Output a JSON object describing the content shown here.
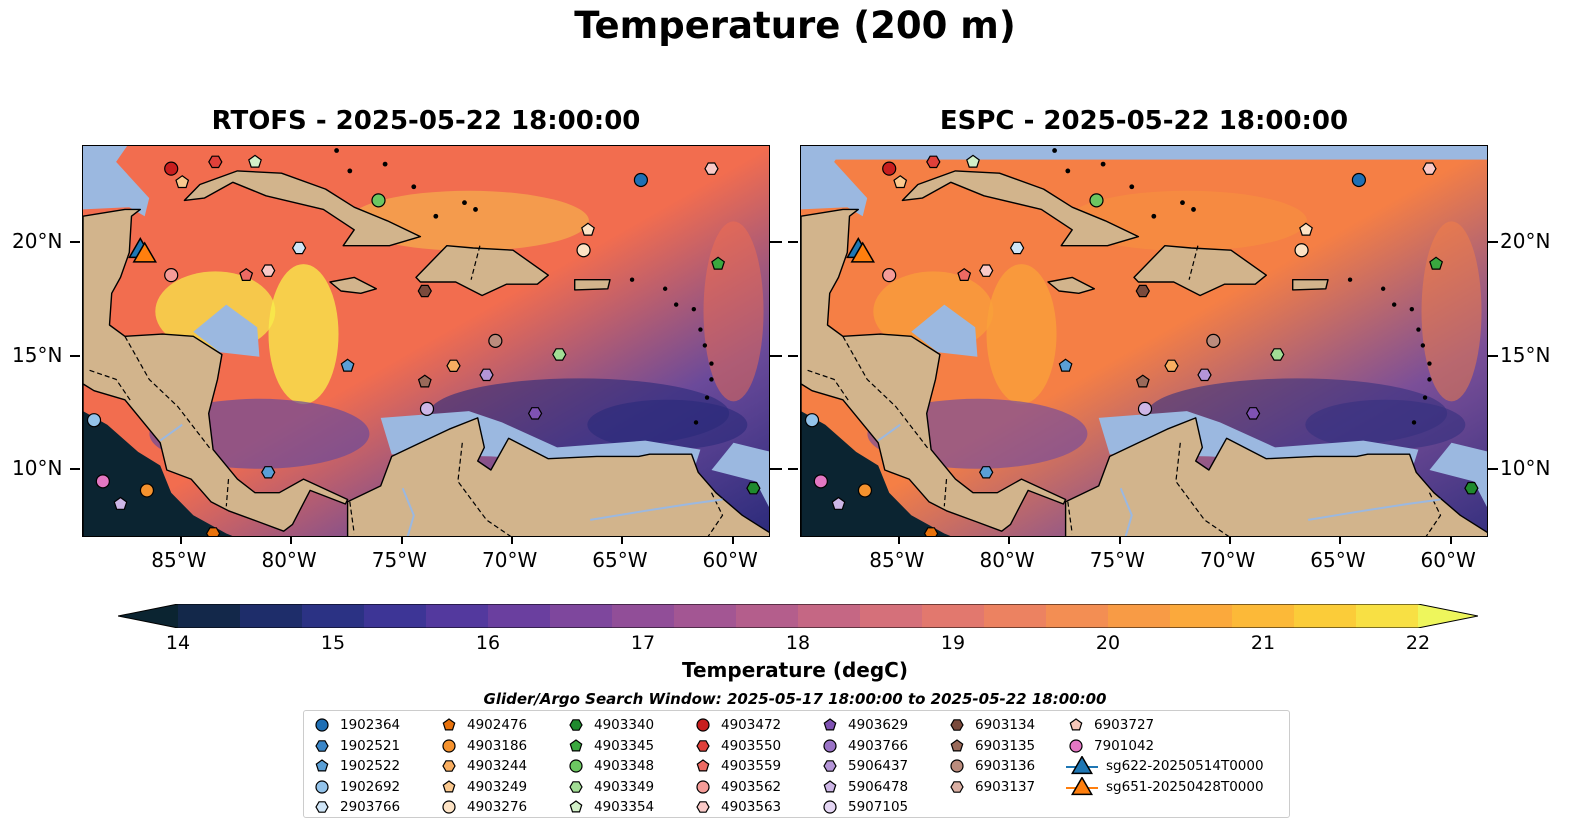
{
  "title": "Temperature (200 m)",
  "panels": [
    {
      "id": "rtofs",
      "title": "RTOFS - 2025-05-22 18:00:00",
      "colors": {
        "warm": "#f26d4f",
        "hot": "#f8f04a",
        "cool": "#6b4a9a",
        "cold": "#2a2a7a"
      }
    },
    {
      "id": "espc",
      "title": "ESPC - 2025-05-22 18:00:00",
      "colors": {
        "warm": "#f57f45",
        "hot": "#f9a13a",
        "cool": "#7b4f98",
        "cold": "#35307f"
      }
    }
  ],
  "axes": {
    "lon_labels": [
      "85°W",
      "80°W",
      "75°W",
      "70°W",
      "65°W",
      "60°W"
    ],
    "lat_labels": [
      "20°N",
      "15°N",
      "10°N"
    ]
  },
  "colorbar": {
    "ticks": [
      "14",
      "15",
      "16",
      "17",
      "18",
      "19",
      "20",
      "21",
      "22"
    ],
    "label": "Temperature (degC)",
    "colors": [
      "#0b2431",
      "#13284a",
      "#1e2d6a",
      "#2b3284",
      "#3d3596",
      "#53399e",
      "#6a3f9f",
      "#7e479d",
      "#914e98",
      "#a35693",
      "#b45e8c",
      "#c56784",
      "#d5707a",
      "#e2786e",
      "#ec8261",
      "#f38e53",
      "#f89b45",
      "#fba93c",
      "#fcb938",
      "#fbcc39",
      "#f8e044",
      "#eef65c"
    ],
    "range": [
      14,
      22
    ]
  },
  "legend": {
    "title": "Glider/Argo Search Window: 2025-05-17 18:00:00 to 2025-05-22 18:00:00",
    "columns": [
      [
        {
          "label": "1902364",
          "marker": "circle",
          "color": "#1f6fb4"
        },
        {
          "label": "1902521",
          "marker": "hexagon",
          "color": "#3a86c8"
        },
        {
          "label": "1902522",
          "marker": "pentagon",
          "color": "#5a9fd6"
        },
        {
          "label": "1902692",
          "marker": "circle",
          "color": "#93c3ea"
        },
        {
          "label": "2903766",
          "marker": "hexagon",
          "color": "#cfe5f7"
        }
      ],
      [
        {
          "label": "4902476",
          "marker": "pentagon",
          "color": "#e8720c"
        },
        {
          "label": "4903186",
          "marker": "circle",
          "color": "#f5922e"
        },
        {
          "label": "4903244",
          "marker": "hexagon",
          "color": "#f8ae61"
        },
        {
          "label": "4903249",
          "marker": "pentagon",
          "color": "#fbc98f"
        },
        {
          "label": "4903276",
          "marker": "circle",
          "color": "#fde3c5"
        }
      ],
      [
        {
          "label": "4903340",
          "marker": "hexagon",
          "color": "#1f8a2e"
        },
        {
          "label": "4903345",
          "marker": "pentagon",
          "color": "#3aa83f"
        },
        {
          "label": "4903348",
          "marker": "circle",
          "color": "#6cc661"
        },
        {
          "label": "4903349",
          "marker": "hexagon",
          "color": "#a2dd95"
        },
        {
          "label": "4903354",
          "marker": "pentagon",
          "color": "#d2f0c8"
        }
      ],
      [
        {
          "label": "4903472",
          "marker": "circle",
          "color": "#c81e1e"
        },
        {
          "label": "4903550",
          "marker": "hexagon",
          "color": "#e0403a"
        },
        {
          "label": "4903559",
          "marker": "pentagon",
          "color": "#ed6a63"
        },
        {
          "label": "4903562",
          "marker": "circle",
          "color": "#f59c98"
        },
        {
          "label": "4903563",
          "marker": "hexagon",
          "color": "#facac8"
        }
      ],
      [
        {
          "label": "4903629",
          "marker": "pentagon",
          "color": "#7f52b3"
        },
        {
          "label": "4903766",
          "marker": "circle",
          "color": "#9a73c6"
        },
        {
          "label": "5906437",
          "marker": "hexagon",
          "color": "#b495d7"
        },
        {
          "label": "5906478",
          "marker": "pentagon",
          "color": "#cdb6e6"
        },
        {
          "label": "5907105",
          "marker": "circle",
          "color": "#e4d6f3"
        }
      ],
      [
        {
          "label": "6903134",
          "marker": "hexagon",
          "color": "#7a4a3c"
        },
        {
          "label": "6903135",
          "marker": "pentagon",
          "color": "#9a6a5a"
        },
        {
          "label": "6903136",
          "marker": "circle",
          "color": "#bb8c7d"
        },
        {
          "label": "6903137",
          "marker": "hexagon",
          "color": "#dbb0a4"
        }
      ],
      [
        {
          "label": "6903727",
          "marker": "pentagon",
          "color": "#f7c7ba"
        },
        {
          "label": "7901042",
          "marker": "circle",
          "color": "#e377c2"
        },
        {
          "label": "sg622-20250514T0000",
          "marker": "triangle",
          "color": "#1f77b4"
        },
        {
          "label": "sg651-20250428T0000",
          "marker": "triangle",
          "color": "#ff7f0e"
        }
      ]
    ]
  },
  "markers": [
    {
      "lon": -85.5,
      "lat": 23.3,
      "marker": "circle",
      "color": "#c81e1e"
    },
    {
      "lon": -83.5,
      "lat": 23.6,
      "marker": "hexagon",
      "color": "#e0403a"
    },
    {
      "lon": -81.7,
      "lat": 23.6,
      "marker": "pentagon",
      "color": "#d2f0c8"
    },
    {
      "lon": -85.0,
      "lat": 22.7,
      "marker": "pentagon",
      "color": "#fbc98f"
    },
    {
      "lon": -64.2,
      "lat": 22.8,
      "marker": "circle",
      "color": "#1f6fb4"
    },
    {
      "lon": -61.0,
      "lat": 23.3,
      "marker": "hexagon",
      "color": "#facac8"
    },
    {
      "lon": -76.1,
      "lat": 21.9,
      "marker": "circle",
      "color": "#6cc661"
    },
    {
      "lon": -66.6,
      "lat": 20.6,
      "marker": "pentagon",
      "color": "#fde3c5"
    },
    {
      "lon": -66.8,
      "lat": 19.7,
      "marker": "circle",
      "color": "#fde3c5"
    },
    {
      "lon": -79.7,
      "lat": 19.8,
      "marker": "hexagon",
      "color": "#cfe5f7"
    },
    {
      "lon": -85.5,
      "lat": 18.6,
      "marker": "circle",
      "color": "#f59c98"
    },
    {
      "lon": -82.1,
      "lat": 18.6,
      "marker": "pentagon",
      "color": "#ed6a63"
    },
    {
      "lon": -81.1,
      "lat": 18.8,
      "marker": "hexagon",
      "color": "#facac8"
    },
    {
      "lon": -74.0,
      "lat": 17.9,
      "marker": "hexagon",
      "color": "#7a4a3c"
    },
    {
      "lon": -60.7,
      "lat": 19.1,
      "marker": "pentagon",
      "color": "#3aa83f"
    },
    {
      "lon": -70.8,
      "lat": 15.7,
      "marker": "circle",
      "color": "#bb8c7d"
    },
    {
      "lon": -67.9,
      "lat": 15.1,
      "marker": "hexagon",
      "color": "#a2dd95"
    },
    {
      "lon": -77.5,
      "lat": 14.6,
      "marker": "pentagon",
      "color": "#5a9fd6"
    },
    {
      "lon": -72.7,
      "lat": 14.6,
      "marker": "hexagon",
      "color": "#f8ae61"
    },
    {
      "lon": -74.0,
      "lat": 13.9,
      "marker": "pentagon",
      "color": "#9a6a5a"
    },
    {
      "lon": -71.2,
      "lat": 14.2,
      "marker": "hexagon",
      "color": "#b495d7"
    },
    {
      "lon": -73.9,
      "lat": 12.7,
      "marker": "circle",
      "color": "#cdb6e6"
    },
    {
      "lon": -69.0,
      "lat": 12.5,
      "marker": "hexagon",
      "color": "#7f52b3"
    },
    {
      "lon": -81.1,
      "lat": 9.9,
      "marker": "hexagon",
      "color": "#5a9fd6"
    },
    {
      "lon": -89.0,
      "lat": 12.2,
      "marker": "circle",
      "color": "#93c3ea"
    },
    {
      "lon": -88.6,
      "lat": 9.5,
      "marker": "circle",
      "color": "#e377c2"
    },
    {
      "lon": -86.6,
      "lat": 9.1,
      "marker": "circle",
      "color": "#f5922e"
    },
    {
      "lon": -87.8,
      "lat": 8.5,
      "marker": "pentagon",
      "color": "#cdb6e6"
    },
    {
      "lon": -83.6,
      "lat": 7.2,
      "marker": "hexagon",
      "color": "#e8720c"
    },
    {
      "lon": -59.1,
      "lat": 9.2,
      "marker": "hexagon",
      "color": "#1f8a2e"
    },
    {
      "lon": -86.9,
      "lat": 19.8,
      "marker": "triangle",
      "color": "#1f77b4"
    },
    {
      "lon": -86.7,
      "lat": 19.6,
      "marker": "triangle",
      "color": "#ff7f0e"
    }
  ]
}
